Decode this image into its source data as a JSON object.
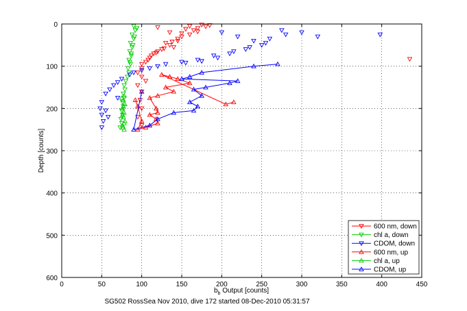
{
  "figure": {
    "footer": "SG502 RossSea Nov 2010, dive 172 started 08-Dec-2010 05:31:57"
  },
  "chart_data": {
    "type": "scatter",
    "xlabel_main": "b",
    "xlabel_sub": "b",
    "xlabel_rest": " Output [counts]",
    "ylabel": "Depth [counts]",
    "xlim": [
      0,
      450
    ],
    "ylim": [
      0,
      600
    ],
    "y_reversed": true,
    "grid": true,
    "x_ticks": [
      0,
      50,
      100,
      150,
      200,
      250,
      300,
      350,
      400,
      450
    ],
    "y_ticks": [
      0,
      100,
      200,
      300,
      400,
      500,
      600
    ],
    "legend_position": "bottom-right",
    "series": [
      {
        "name": "600 nm, down",
        "color": "#ff0000",
        "marker": "triangle-down",
        "line": false,
        "points": [
          [
            120,
            8
          ],
          [
            135,
            20
          ],
          [
            150,
            30
          ],
          [
            160,
            5
          ],
          [
            165,
            15
          ],
          [
            170,
            10
          ],
          [
            175,
            2
          ],
          [
            145,
            40
          ],
          [
            130,
            45
          ],
          [
            140,
            55
          ],
          [
            125,
            60
          ],
          [
            115,
            70
          ],
          [
            110,
            80
          ],
          [
            105,
            90
          ],
          [
            100,
            95
          ],
          [
            155,
            12
          ],
          [
            160,
            25
          ],
          [
            145,
            35
          ],
          [
            135,
            50
          ],
          [
            120,
            65
          ],
          [
            112,
            75
          ],
          [
            108,
            85
          ],
          [
            180,
            6
          ],
          [
            185,
            3
          ],
          [
            170,
            18
          ],
          [
            150,
            22
          ],
          [
            138,
            42
          ],
          [
            128,
            58
          ],
          [
            118,
            68
          ],
          [
            435,
            83
          ],
          [
            100,
            105
          ],
          [
            95,
            115
          ],
          [
            100,
            125
          ],
          [
            105,
            135
          ],
          [
            95,
            145
          ],
          [
            100,
            160
          ],
          [
            98,
            180
          ],
          [
            100,
            200
          ],
          [
            95,
            220
          ],
          [
            100,
            240
          ]
        ]
      },
      {
        "name": "chl a, down",
        "color": "#00cc00",
        "marker": "triangle-down",
        "line": false,
        "points": [
          [
            90,
            5
          ],
          [
            92,
            15
          ],
          [
            88,
            25
          ],
          [
            90,
            35
          ],
          [
            86,
            45
          ],
          [
            88,
            55
          ],
          [
            85,
            65
          ],
          [
            87,
            75
          ],
          [
            84,
            85
          ],
          [
            86,
            95
          ],
          [
            83,
            105
          ],
          [
            84,
            115
          ],
          [
            82,
            125
          ],
          [
            80,
            135
          ],
          [
            78,
            145
          ],
          [
            79,
            155
          ],
          [
            77,
            165
          ],
          [
            78,
            175
          ],
          [
            76,
            185
          ],
          [
            77,
            195
          ],
          [
            75,
            205
          ],
          [
            76,
            215
          ],
          [
            74,
            225
          ],
          [
            75,
            235
          ],
          [
            73,
            245
          ],
          [
            94,
            10
          ],
          [
            91,
            30
          ],
          [
            89,
            50
          ],
          [
            87,
            70
          ],
          [
            85,
            90
          ]
        ]
      },
      {
        "name": "CDOM, down",
        "color": "#0000ff",
        "marker": "triangle-down",
        "line": false,
        "points": [
          [
            200,
            20
          ],
          [
            220,
            30
          ],
          [
            240,
            40
          ],
          [
            260,
            35
          ],
          [
            280,
            25
          ],
          [
            300,
            20
          ],
          [
            320,
            30
          ],
          [
            250,
            50
          ],
          [
            230,
            60
          ],
          [
            210,
            70
          ],
          [
            190,
            75
          ],
          [
            170,
            85
          ],
          [
            150,
            90
          ],
          [
            130,
            95
          ],
          [
            110,
            105
          ],
          [
            90,
            115
          ],
          [
            75,
            130
          ],
          [
            65,
            145
          ],
          [
            55,
            165
          ],
          [
            50,
            185
          ],
          [
            48,
            200
          ],
          [
            50,
            215
          ],
          [
            52,
            230
          ],
          [
            50,
            245
          ],
          [
            60,
            155
          ],
          [
            70,
            175
          ],
          [
            55,
            205
          ],
          [
            58,
            220
          ],
          [
            398,
            25
          ],
          [
            275,
            15
          ],
          [
            255,
            45
          ],
          [
            235,
            55
          ],
          [
            215,
            65
          ],
          [
            195,
            80
          ],
          [
            175,
            88
          ],
          [
            155,
            92
          ],
          [
            120,
            100
          ],
          [
            100,
            110
          ],
          [
            85,
            120
          ],
          [
            70,
            138
          ]
        ]
      },
      {
        "name": "600 nm, up",
        "color": "#ff0000",
        "marker": "triangle-up",
        "line": true,
        "points": [
          [
            215,
            185
          ],
          [
            205,
            190
          ],
          [
            125,
            120
          ],
          [
            135,
            125
          ],
          [
            145,
            130
          ],
          [
            160,
            140
          ],
          [
            130,
            150
          ],
          [
            140,
            160
          ],
          [
            120,
            170
          ],
          [
            110,
            175
          ],
          [
            118,
            200
          ],
          [
            120,
            210
          ],
          [
            110,
            215
          ],
          [
            118,
            225
          ],
          [
            120,
            235
          ],
          [
            105,
            245
          ],
          [
            95,
            250
          ],
          [
            100,
            230
          ],
          [
            95,
            195
          ],
          [
            92,
            180
          ]
        ]
      },
      {
        "name": "chl a, up",
        "color": "#00cc00",
        "marker": "triangle-up",
        "line": false,
        "points": [
          [
            78,
            170
          ],
          [
            77,
            180
          ],
          [
            79,
            190
          ],
          [
            76,
            200
          ],
          [
            78,
            210
          ],
          [
            77,
            220
          ],
          [
            79,
            230
          ],
          [
            76,
            240
          ],
          [
            78,
            250
          ],
          [
            75,
            175
          ],
          [
            77,
            195
          ],
          [
            76,
            215
          ],
          [
            78,
            235
          ],
          [
            77,
            245
          ]
        ]
      },
      {
        "name": "CDOM, up",
        "color": "#0000ff",
        "marker": "triangle-up",
        "line": true,
        "points": [
          [
            270,
            95
          ],
          [
            240,
            100
          ],
          [
            175,
            115
          ],
          [
            160,
            125
          ],
          [
            150,
            130
          ],
          [
            220,
            135
          ],
          [
            210,
            140
          ],
          [
            180,
            150
          ],
          [
            165,
            155
          ],
          [
            175,
            170
          ],
          [
            160,
            185
          ],
          [
            170,
            195
          ],
          [
            165,
            205
          ],
          [
            140,
            210
          ],
          [
            120,
            225
          ],
          [
            110,
            240
          ],
          [
            90,
            250
          ],
          [
            100,
            160
          ]
        ]
      }
    ]
  }
}
